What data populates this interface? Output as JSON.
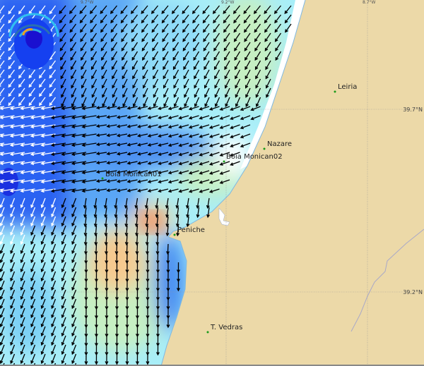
{
  "map": {
    "colors": {
      "land": "#ecd9a8",
      "deep_blue": "#1e50f0",
      "mid_blue": "#4b96f5",
      "light_cyan": "#aaf0fa",
      "green": "#c8f0c0",
      "orange": "#f8c890",
      "red": "#f06040",
      "coast_strip": "#ffffff",
      "grid": "#999999",
      "place_dot": "#1a9a1a"
    },
    "grid_labels": {
      "lon": [
        "9.7°W",
        "9.2°W",
        "8.7°W"
      ],
      "lat": [
        "39.7°N",
        "39.2°N"
      ]
    },
    "places": [
      {
        "name": "Leiria"
      },
      {
        "name": "Nazare"
      },
      {
        "name": "Boia Monican02"
      },
      {
        "name": "Boia Monican01"
      },
      {
        "name": "Peniche"
      },
      {
        "name": "T. Vedras"
      }
    ],
    "logo_icon": "wave-logo-icon",
    "arrow_icon": "current-arrow-icon"
  }
}
